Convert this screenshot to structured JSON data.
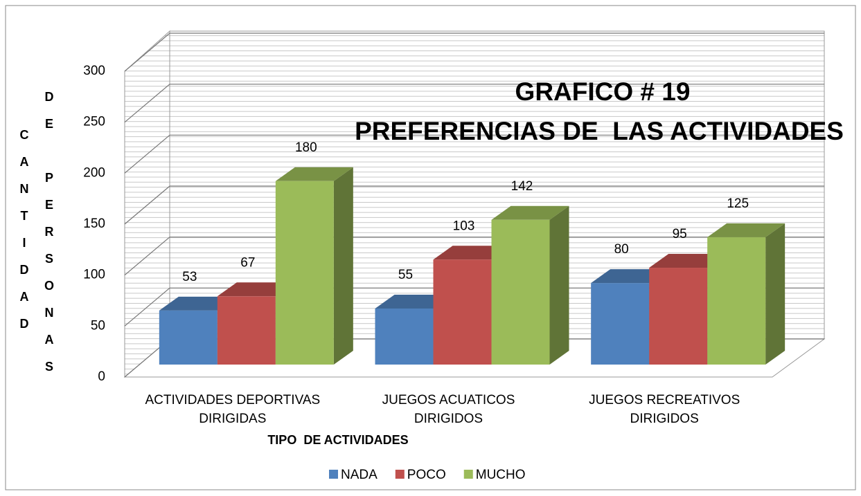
{
  "chart_data": {
    "type": "bar3d",
    "title": [
      "GRAFICO # 19",
      "PREFERENCIAS DE  LAS ACTIVIDADES"
    ],
    "ylabel": [
      "CANTIDAD",
      "DE PERSONAS"
    ],
    "xlabel": "TIPO  DE ACTIVIDADES",
    "categories": [
      "ACTIVIDADES DEPORTIVAS DIRIGIDAS",
      "JUEGOS ACUATICOS DIRIGIDOS",
      "JUEGOS RECREATIVOS DIRIGIDOS"
    ],
    "series": [
      {
        "name": "NADA",
        "color": "#4f81bd",
        "values": [
          53,
          55,
          80
        ]
      },
      {
        "name": "POCO",
        "color": "#c0504d",
        "values": [
          67,
          103,
          95
        ]
      },
      {
        "name": "MUCHO",
        "color": "#9bbb59",
        "values": [
          180,
          142,
          125
        ]
      }
    ],
    "ylim": [
      0,
      300
    ],
    "yticks": [
      0,
      50,
      100,
      150,
      200,
      250,
      300
    ],
    "grid": true,
    "legend": "bottom"
  }
}
